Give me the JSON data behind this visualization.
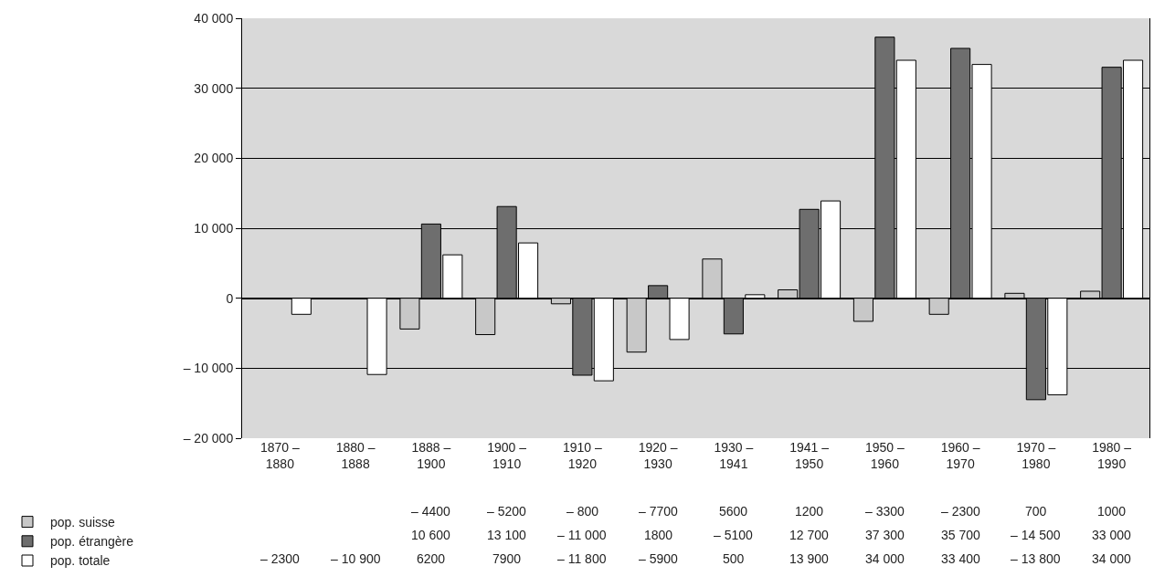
{
  "chart_data": {
    "type": "bar",
    "categories": [
      "1870 –\n1880",
      "1880 –\n1888",
      "1888 –\n1900",
      "1900 –\n1910",
      "1910 –\n1920",
      "1920 –\n1930",
      "1930 –\n1941",
      "1941 –\n1950",
      "1950 –\n1960",
      "1960 –\n1970",
      "1970 –\n1980",
      "1980 –\n1990"
    ],
    "series": [
      {
        "name": "pop. suisse",
        "color": "#c8c8c8",
        "values": [
          null,
          null,
          -4400,
          -5200,
          -800,
          -7700,
          5600,
          1200,
          -3300,
          -2300,
          700,
          1000
        ],
        "value_labels": [
          null,
          null,
          "– 4400",
          "– 5200",
          "– 800",
          "– 7700",
          "5600",
          "1200",
          "– 3300",
          "– 2300",
          "700",
          "1000"
        ]
      },
      {
        "name": "pop. étrangère",
        "color": "#6e6e6e",
        "values": [
          null,
          null,
          10600,
          13100,
          -11000,
          1800,
          -5100,
          12700,
          37300,
          35700,
          -14500,
          33000
        ],
        "value_labels": [
          null,
          null,
          "10 600",
          "13 100",
          "– 11 000",
          "1800",
          "– 5100",
          "12 700",
          "37 300",
          "35 700",
          "– 14 500",
          "33 000"
        ]
      },
      {
        "name": "pop. totale",
        "color": "#ffffff",
        "values": [
          -2300,
          -10900,
          6200,
          7900,
          -11800,
          -5900,
          500,
          13900,
          34000,
          33400,
          -13800,
          34000
        ],
        "value_labels": [
          "– 2300",
          "– 10 900",
          "6200",
          "7900",
          "– 11 800",
          "– 5900",
          "500",
          "13 900",
          "34 000",
          "33 400",
          "– 13 800",
          "34 000"
        ]
      }
    ],
    "ylim": [
      -20000,
      40000
    ],
    "yticks": [
      {
        "value": -20000,
        "label": "– 20 000"
      },
      {
        "value": -10000,
        "label": "– 10 000"
      },
      0,
      {
        "value": 10000,
        "label": "10 000"
      },
      {
        "value": 20000,
        "label": "20 000"
      },
      {
        "value": 30000,
        "label": "30 000"
      },
      {
        "value": 40000,
        "label": "40 000"
      }
    ],
    "grid": "y",
    "legend": "bottom left"
  }
}
